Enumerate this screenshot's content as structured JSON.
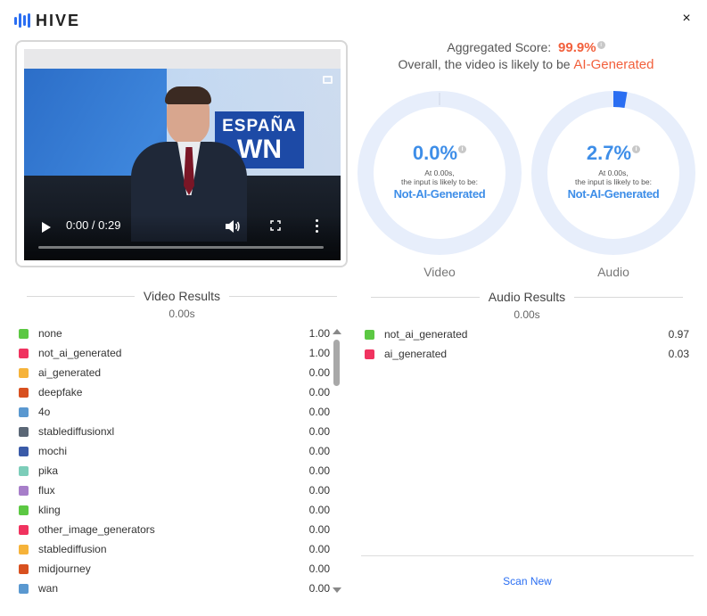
{
  "header": {
    "brand": "HIVE",
    "close_glyph": "×"
  },
  "video_player": {
    "time": "0:00 / 0:29",
    "progress": 0,
    "overlay_sign_line1": "ESPAÑA",
    "overlay_sign_line2": "WN",
    "icons": [
      "play-icon",
      "volume-icon",
      "fullscreen-icon",
      "more-vert-icon",
      "expand-icon"
    ]
  },
  "aggregate": {
    "label": "Aggregated Score:",
    "score": "99.9%",
    "summary_prefix": "Overall, the video is likely to be",
    "verdict": "AI-Generated"
  },
  "gauges": {
    "video": {
      "percent": "0.0%",
      "fraction": 0.0,
      "at_line1": "At 0.00s,",
      "at_line2": "the input is likely to be:",
      "verdict": "Not-AI-Generated",
      "label": "Video"
    },
    "audio": {
      "percent": "2.7%",
      "fraction": 0.027,
      "at_line1": "At 0.00s,",
      "at_line2": "the input is likely to be:",
      "verdict": "Not-AI-Generated",
      "label": "Audio"
    }
  },
  "video_results": {
    "title": "Video Results",
    "time": "0.00s",
    "rows": [
      {
        "label": "none",
        "value": "1.00",
        "color": "#5cc843"
      },
      {
        "label": "not_ai_generated",
        "value": "1.00",
        "color": "#f0335f"
      },
      {
        "label": "ai_generated",
        "value": "0.00",
        "color": "#f6b33a"
      },
      {
        "label": "deepfake",
        "value": "0.00",
        "color": "#d8501f"
      },
      {
        "label": "4o",
        "value": "0.00",
        "color": "#5a98d0"
      },
      {
        "label": "stablediffusionxl",
        "value": "0.00",
        "color": "#5b6776"
      },
      {
        "label": "mochi",
        "value": "0.00",
        "color": "#3a5ba8"
      },
      {
        "label": "pika",
        "value": "0.00",
        "color": "#7ccdb9"
      },
      {
        "label": "flux",
        "value": "0.00",
        "color": "#a77ec9"
      },
      {
        "label": "kling",
        "value": "0.00",
        "color": "#5cc843"
      },
      {
        "label": "other_image_generators",
        "value": "0.00",
        "color": "#f0335f"
      },
      {
        "label": "stablediffusion",
        "value": "0.00",
        "color": "#f6b33a"
      },
      {
        "label": "midjourney",
        "value": "0.00",
        "color": "#d8501f"
      },
      {
        "label": "wan",
        "value": "0.00",
        "color": "#5a98d0"
      }
    ]
  },
  "audio_results": {
    "title": "Audio Results",
    "time": "0.00s",
    "rows": [
      {
        "label": "not_ai_generated",
        "value": "0.97",
        "color": "#5cc843"
      },
      {
        "label": "ai_generated",
        "value": "0.03",
        "color": "#f0335f"
      }
    ]
  },
  "footer": {
    "scan_new": "Scan New"
  },
  "colors": {
    "brand_blue": "#2a6ef2",
    "gauge_track": "#e7eefb",
    "gauge_fill": "#2a6ef2",
    "accent_orange": "#f2603c",
    "gauge_text": "#3e8ee8"
  }
}
